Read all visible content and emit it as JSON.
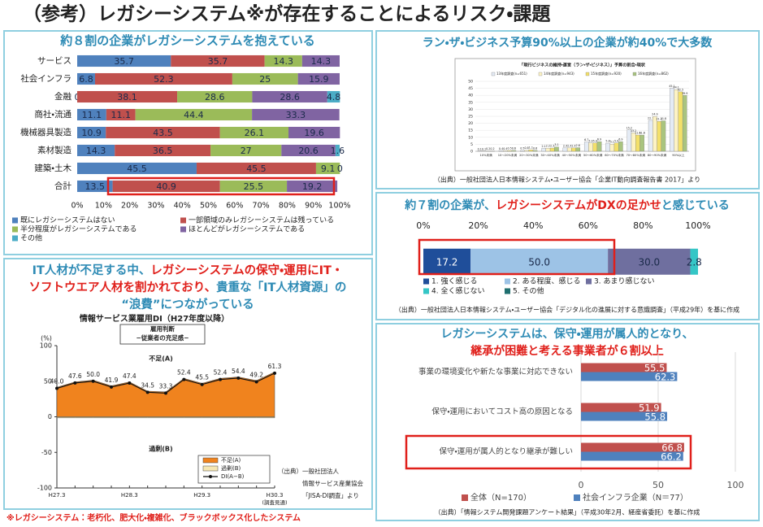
{
  "title": "（参考）レガシーシステム※が存在することによるリスク・課題",
  "footnote": "※レガシーシステム：老朽化、肥大化・複雑化、ブラックボックス化したシステム",
  "chart_data": [
    {
      "type": "stacked_bar_h",
      "heading": [
        [
          {
            "text": "約８割の企業がレガシーシステムを抱えている",
            "color": "#2e8bb5"
          }
        ]
      ],
      "categories": [
        "サービス",
        "社会インフラ",
        "金融",
        "商社・流通",
        "機械器具製造",
        "素材製造",
        "建築・土木",
        "合計"
      ],
      "series": [
        {
          "name": "既にレガシーシステムはない",
          "color": "#4f81bd",
          "values": [
            35.7,
            6.8,
            0,
            11.1,
            10.9,
            14.3,
            45.5,
            13.5
          ]
        },
        {
          "name": "一部領域のみレガシーシステムは残っている",
          "color": "#c0504d",
          "values": [
            35.7,
            52.3,
            38.1,
            11.1,
            43.5,
            36.5,
            45.5,
            40.9
          ]
        },
        {
          "name": "半分程度がレガシーシステムである",
          "color": "#9bbb59",
          "values": [
            14.3,
            25,
            28.6,
            44.4,
            26.1,
            27,
            9.1,
            25.5
          ]
        },
        {
          "name": "ほとんどがレガシーシステムである",
          "color": "#8064a2",
          "values": [
            14.3,
            15.9,
            28.6,
            33.3,
            19.6,
            20.6,
            0,
            19.2
          ]
        },
        {
          "name": "その他",
          "color": "#4bacc6",
          "values": [
            null,
            null,
            4.8,
            null,
            null,
            1.6,
            null,
            null
          ]
        }
      ],
      "xlim": [
        0,
        100
      ],
      "xticks": [
        {
          "value": 0,
          "label": "0%"
        },
        {
          "value": 10,
          "label": "10%"
        },
        {
          "value": 20,
          "label": "20%"
        },
        {
          "value": 30,
          "label": "30%"
        },
        {
          "value": 40,
          "label": "40%"
        },
        {
          "value": 50,
          "label": "50%"
        },
        {
          "value": 60,
          "label": "60%"
        },
        {
          "value": 70,
          "label": "70%"
        },
        {
          "value": 80,
          "label": "80%"
        },
        {
          "value": 90,
          "label": "90%"
        },
        {
          "value": 100,
          "label": "100%"
        }
      ],
      "grid": false
    },
    {
      "type": "grouped_bar",
      "heading": [
        [
          {
            "text": "ラン・ザ・ビジネス予算90%以上の企業が約40%で大多数",
            "color": "#2e8bb5"
          }
        ]
      ],
      "title": "「現行ビジネスの維持・運営（ラン・ザ・ビジネス）」予算の割合・現状",
      "categories": [
        "10%未満",
        "10〜20%未満",
        "20〜30%未満",
        "30〜40%未満",
        "40〜50%未満",
        "50〜60%未満",
        "60〜70%未満",
        "70〜80%未満",
        "80〜90%未満",
        "90%以上"
      ],
      "series": [
        {
          "name": "13年度調査(n=651)",
          "color": "#e4ebf5",
          "values": [
            0.1,
            0.4,
            0.5,
            2.1,
            2.4,
            6.7,
            5.8,
            15.2,
            22.1,
            45.1
          ]
        },
        {
          "name": "14年度調査(n=943)",
          "color": "#fdf3c4",
          "values": [
            0.1,
            0.4,
            0.8,
            2.2,
            2.4,
            5.9,
            5.1,
            13.2,
            24.9,
            44.1
          ]
        },
        {
          "name": "15年度調査(n=920)",
          "color": "#f3e06a",
          "values": [
            0.2,
            0.5,
            1.1,
            2.3,
            2.4,
            5.9,
            5.9,
            11.6,
            21.4,
            42.5
          ]
        },
        {
          "name": "16年度調査(n=862)",
          "color": "#a9c47f",
          "values": [
            0.2,
            0.6,
            0.6,
            3.1,
            2.6,
            6.9,
            6.9,
            11.6,
            21.8,
            39.9
          ]
        }
      ],
      "ylim": [
        0,
        50
      ],
      "yticks": [
        0,
        5,
        10,
        15,
        20,
        25,
        30,
        35,
        40,
        45,
        50
      ],
      "grid": true,
      "source": "（出典）一般社団法人日本情報システム・ユーザー協会「企業IT動向調査報告書 2017」より"
    },
    {
      "type": "stacked_bar_h",
      "heading": [
        [
          {
            "text": "約７割の企業が、",
            "color": "#2e8bb5"
          },
          {
            "text": "レガシーシステムがDXの足かせ",
            "color": "#e0201b"
          },
          {
            "text": "と感じている",
            "color": "#2e8bb5"
          }
        ]
      ],
      "series": [
        {
          "name": "1. 強く感じる",
          "color": "#1f4e9a",
          "values": [
            17.2
          ],
          "value_labels": [
            "17.2"
          ]
        },
        {
          "name": "2. ある程度、感じる",
          "color": "#9dc3e6",
          "values": [
            50
          ],
          "value_labels": [
            "50.0"
          ]
        },
        {
          "name": "3. あまり感じない",
          "color": "#6f6f9f",
          "values": [
            30
          ],
          "value_labels": [
            "30.0"
          ]
        },
        {
          "name": "4. 全く感じない",
          "color": "#35c6c6",
          "values": [
            2.8
          ],
          "value_labels": [
            "2.8"
          ]
        },
        {
          "name": "5. その他",
          "color": "#1f6f6f",
          "values": [
            null
          ]
        }
      ],
      "xlim": [
        0,
        100
      ],
      "xticks": [
        {
          "value": 0,
          "label": "0%"
        },
        {
          "value": 20,
          "label": "20%"
        },
        {
          "value": 40,
          "label": "40%"
        },
        {
          "value": 60,
          "label": "60%"
        },
        {
          "value": 80,
          "label": "80%"
        },
        {
          "value": 100,
          "label": "100%"
        }
      ],
      "grid": false,
      "source": "（出典）一般社団法人日本情報システム・ユーザー協会「デジタル化の進展に対する意識調査」（平成29年）を基に作成"
    },
    {
      "type": "line",
      "heading": [
        [
          {
            "text": "IT人材が不足する中、",
            "color": "#2e8bb5"
          },
          {
            "text": "レガシーシステムの保守・運用にIT・",
            "color": "#e0201b"
          }
        ],
        [
          {
            "text": "ソフトウエア人材を割かれており、",
            "color": "#e0201b"
          },
          {
            "text": "貴重な「IT人材資源」の",
            "color": "#2e8bb5"
          }
        ],
        [
          {
            "text": "“浪費”につながっている",
            "color": "#2e8bb5"
          }
        ]
      ],
      "title": "情報サービス業雇用DI（H27年度以降）",
      "annotation_box": [
        "雇用判断",
        "−従業者の充足感−"
      ],
      "y_label": "(%)",
      "categories": [
        "H27.3",
        null,
        null,
        null,
        "H28.3",
        null,
        null,
        null,
        "H29.3",
        null,
        null,
        null,
        "H30.3"
      ],
      "x_note": "(調査見通)",
      "series": [
        {
          "name": "不足(A)",
          "kind": "area",
          "color": "#f0831e",
          "values": [
            41.5,
            49,
            51.5,
            43.5,
            49,
            36,
            35,
            54,
            47,
            54,
            56,
            51,
            63
          ]
        },
        {
          "name": "過剰(B)",
          "kind": "area_below",
          "color": "#f6e7b3",
          "values": [
            1.5,
            1.5,
            1.5,
            1.5,
            1.5,
            1.5,
            1.5,
            1.5,
            1.5,
            1.5,
            1.5,
            1.5,
            1.5
          ]
        },
        {
          "name": "DI(A−B)",
          "kind": "line",
          "color": "#111111",
          "values": [
            40,
            47.6,
            50,
            41.9,
            47.4,
            34.5,
            33.3,
            52.4,
            45.5,
            52.4,
            54.4,
            49.2,
            61.3
          ],
          "value_labels": [
            "40.0",
            "47.6",
            "50.0",
            "41.9",
            "47.4",
            "34.5",
            "33.3",
            "52.4",
            "45.5",
            "52.4",
            "54.4",
            "49.2",
            "61.3"
          ]
        }
      ],
      "ylim": [
        -100,
        100
      ],
      "yticks": [
        -100,
        -50,
        0,
        50,
        100
      ],
      "source": [
        "（出典）一般社団法人",
        "情報サービス産業協会",
        "「JISA-DI調査」より"
      ]
    },
    {
      "type": "grouped_bar_h",
      "heading": [
        [
          {
            "text": "レガシーシステムは、保守・運用が属人的となり、",
            "color": "#2e8bb5"
          }
        ],
        [
          {
            "text": "継承が困難と考える事業者が６割以上",
            "color": "#e0201b"
          }
        ]
      ],
      "categories": [
        "事業の環境変化や新たな事業に対応できない",
        "保守・運用においてコスト高の原因となる",
        "保守・運用が属人的となり継承が難しい"
      ],
      "series": [
        {
          "name": "全体（N=170）",
          "color": "#c0504d",
          "values": [
            55.5,
            51.9,
            66.8
          ]
        },
        {
          "name": "社会インフラ企業（N＝77）",
          "color": "#4f81bd",
          "values": [
            62.3,
            55.8,
            66.2
          ]
        }
      ],
      "xlim": [
        0,
        100
      ],
      "xticks": [
        0,
        50,
        100
      ],
      "grid": true,
      "source": "（出典）「情報システム開発課題アンケート結果」（平成30年2月、経産省委託）を基に作成"
    }
  ]
}
